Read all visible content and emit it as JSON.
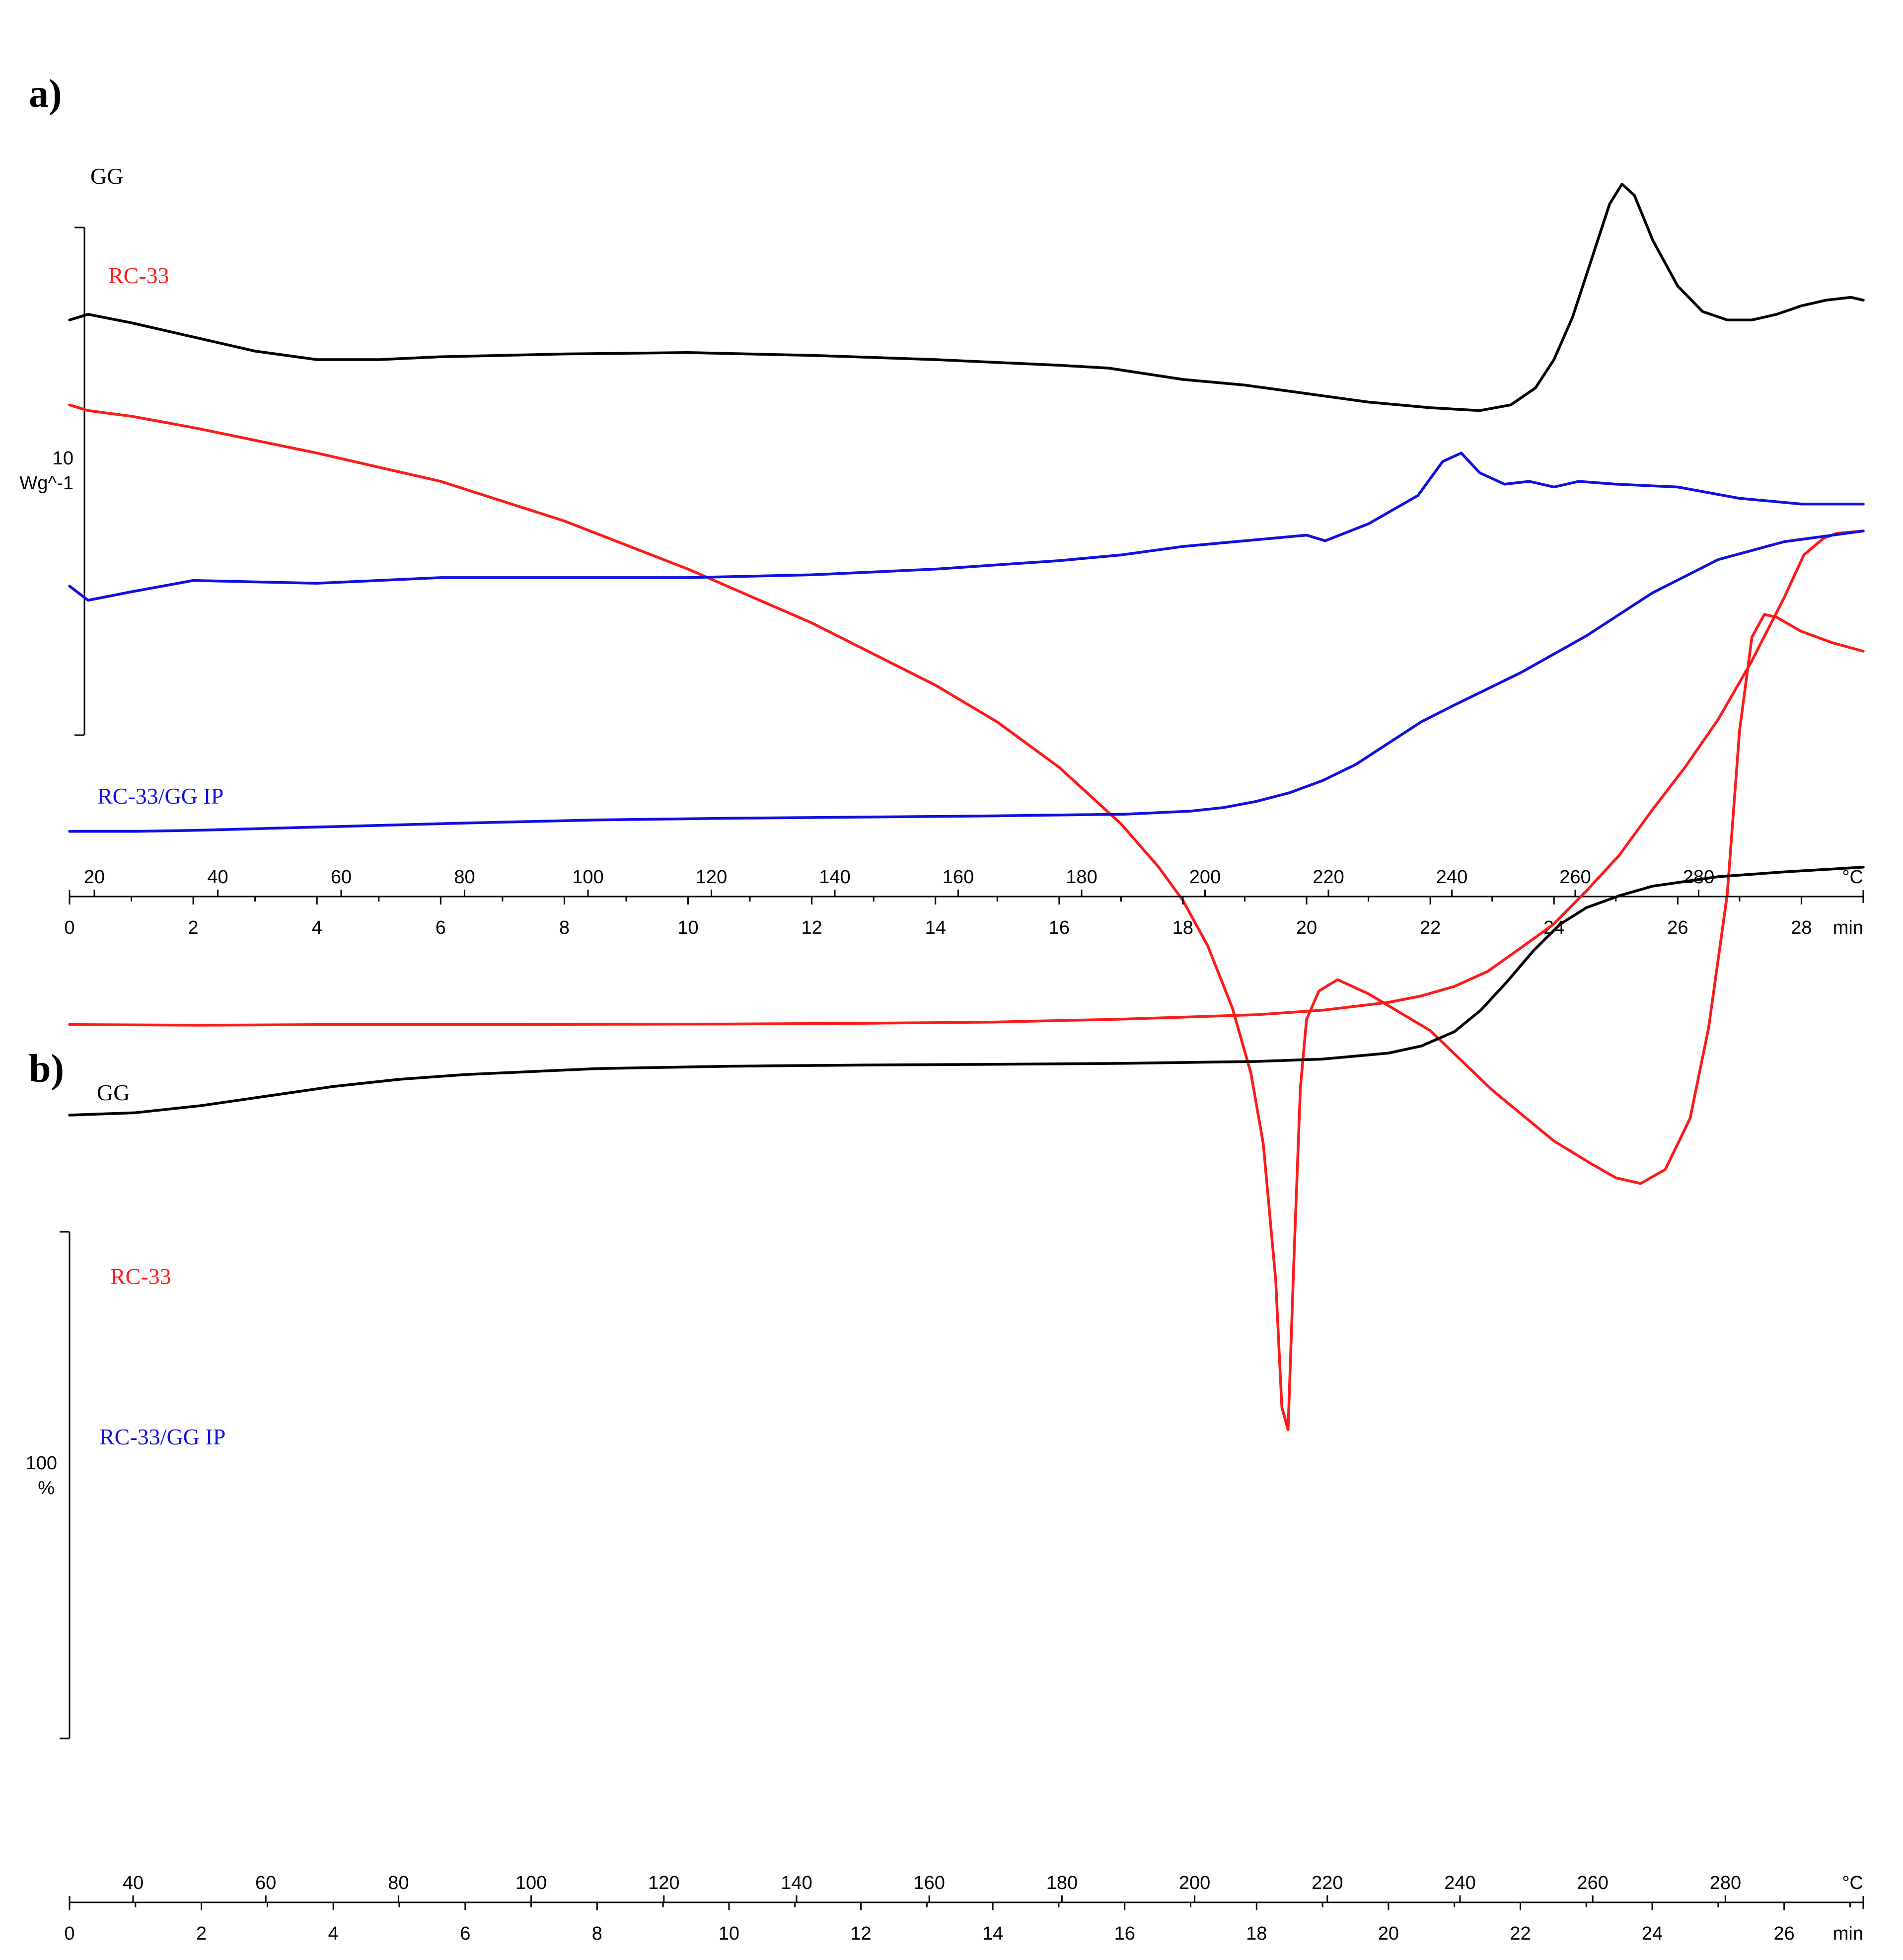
{
  "colors": {
    "black": "#000000",
    "red": "#ff1a1a",
    "blue": "#1010e0"
  },
  "chart_data": [
    {
      "panel": "a)",
      "type": "line",
      "title": "",
      "ylabel_value": "10",
      "ylabel_unit": "Wg^-1",
      "top_axis": {
        "unit": "°C",
        "ticks": [
          20,
          40,
          60,
          80,
          100,
          120,
          140,
          160,
          180,
          200,
          220,
          240,
          260,
          280
        ]
      },
      "bottom_axis": {
        "unit": "min",
        "ticks": [
          0,
          2,
          4,
          6,
          8,
          10,
          12,
          14,
          16,
          18,
          20,
          22,
          24,
          26,
          28
        ],
        "xlim": [
          0,
          29
        ]
      },
      "series": [
        {
          "name": "GG",
          "color": "black",
          "x": [
            0,
            0.3,
            1,
            2,
            3,
            4,
            5,
            6,
            8,
            10,
            12,
            14,
            16,
            16.8,
            18,
            19,
            20,
            21,
            22,
            22.8,
            23.3,
            23.7,
            24,
            24.3,
            24.6,
            24.9,
            25.1,
            25.3,
            25.6,
            26,
            26.4,
            26.8,
            27.2,
            27.6,
            28,
            28.4,
            28.8,
            29
          ],
          "y": [
            0.94,
            0.96,
            0.93,
            0.88,
            0.83,
            0.8,
            0.8,
            0.81,
            0.82,
            0.825,
            0.815,
            0.8,
            0.78,
            0.77,
            0.73,
            0.71,
            0.68,
            0.65,
            0.63,
            0.62,
            0.64,
            0.7,
            0.8,
            0.95,
            1.15,
            1.35,
            1.42,
            1.38,
            1.22,
            1.06,
            0.97,
            0.94,
            0.94,
            0.96,
            0.99,
            1.01,
            1.02,
            1.01
          ]
        },
        {
          "name": "RC-33",
          "color": "red",
          "x": [
            0,
            0.3,
            1,
            2,
            4,
            6,
            8,
            10,
            12,
            14,
            15,
            16,
            17,
            17.6,
            18,
            18.4,
            18.8,
            19.1,
            19.3,
            19.5,
            19.6,
            19.7,
            19.8,
            19.9,
            20,
            20.2,
            20.5,
            21,
            22,
            23,
            24,
            24.6,
            25,
            25.4,
            25.8,
            26.2,
            26.5,
            26.8,
            27,
            27.2,
            27.4,
            27.6,
            28,
            28.5,
            29
          ],
          "y": [
            0.64,
            0.62,
            0.6,
            0.56,
            0.47,
            0.37,
            0.23,
            0.06,
            -0.13,
            -0.35,
            -0.48,
            -0.64,
            -0.84,
            -0.99,
            -1.11,
            -1.27,
            -1.49,
            -1.72,
            -1.97,
            -2.45,
            -2.9,
            -2.98,
            -2.35,
            -1.77,
            -1.53,
            -1.43,
            -1.39,
            -1.44,
            -1.57,
            -1.78,
            -1.96,
            -2.04,
            -2.09,
            -2.11,
            -2.06,
            -1.88,
            -1.56,
            -1.09,
            -0.51,
            -0.18,
            -0.1,
            -0.11,
            -0.16,
            -0.2,
            -0.23
          ]
        },
        {
          "name": "RC-33/GG IP",
          "color": "blue",
          "x": [
            0,
            0.3,
            1,
            2,
            4,
            6,
            8,
            10,
            12,
            14,
            16,
            17,
            18,
            19,
            20,
            20.3,
            21,
            21.8,
            22.2,
            22.5,
            22.8,
            23.2,
            23.6,
            24,
            24.4,
            25,
            26,
            27,
            28,
            29
          ],
          "y": [
            0.0,
            -0.05,
            -0.02,
            0.02,
            0.01,
            0.03,
            0.03,
            0.03,
            0.04,
            0.06,
            0.09,
            0.11,
            0.14,
            0.16,
            0.18,
            0.16,
            0.22,
            0.32,
            0.44,
            0.47,
            0.4,
            0.36,
            0.37,
            0.35,
            0.37,
            0.36,
            0.35,
            0.31,
            0.29,
            0.29
          ]
        }
      ]
    },
    {
      "panel": "b)",
      "type": "line",
      "title": "",
      "ylabel_value": "100",
      "ylabel_unit": "%",
      "top_axis": {
        "unit": "°C",
        "ticks": [
          40,
          60,
          80,
          100,
          120,
          140,
          160,
          180,
          200,
          220,
          240,
          260,
          280
        ]
      },
      "bottom_axis": {
        "unit": "min",
        "ticks": [
          0,
          2,
          4,
          6,
          8,
          10,
          12,
          14,
          16,
          18,
          20,
          22,
          24,
          26
        ],
        "xlim": [
          0,
          27.2
        ]
      },
      "series": [
        {
          "name": "GG",
          "color": "black",
          "x": [
            0,
            1,
            2,
            3,
            4,
            5,
            6,
            8,
            10,
            12,
            14,
            16,
            18,
            19,
            20,
            20.5,
            21,
            21.4,
            21.8,
            22.2,
            22.6,
            23,
            23.5,
            24,
            25,
            26,
            27.2
          ],
          "y": [
            100.0,
            99.9,
            99.6,
            99.2,
            98.8,
            98.5,
            98.3,
            98.05,
            97.95,
            97.9,
            97.87,
            97.83,
            97.75,
            97.65,
            97.4,
            97.1,
            96.5,
            95.6,
            94.4,
            93.1,
            92.0,
            91.3,
            90.8,
            90.4,
            90.0,
            89.8,
            89.6
          ]
        },
        {
          "name": "RC-33",
          "color": "red",
          "x": [
            0,
            2,
            4,
            6,
            8,
            10,
            12,
            14,
            16,
            18,
            19,
            20,
            20.5,
            21,
            21.5,
            22,
            22.5,
            23,
            23.5,
            24,
            24.5,
            25,
            25.5,
            26,
            26.3,
            26.6,
            26.8,
            27.2
          ],
          "y": [
            96.2,
            96.23,
            96.2,
            96.2,
            96.19,
            96.18,
            96.15,
            96.1,
            95.97,
            95.79,
            95.6,
            95.27,
            95.0,
            94.6,
            93.98,
            93.0,
            92.0,
            90.6,
            89.1,
            87.2,
            85.4,
            83.4,
            81.0,
            78.3,
            76.5,
            75.8,
            75.6,
            75.5
          ]
        },
        {
          "name": "RC-33/GG IP",
          "color": "blue",
          "x": [
            0,
            1,
            2,
            4,
            6,
            8,
            10,
            12,
            14,
            16,
            17,
            17.5,
            18,
            18.5,
            19,
            19.5,
            20,
            20.5,
            21,
            22,
            23,
            24,
            25,
            26,
            27.2
          ],
          "y": [
            88.1,
            88.1,
            88.05,
            87.9,
            87.75,
            87.62,
            87.55,
            87.5,
            87.45,
            87.38,
            87.25,
            87.1,
            86.84,
            86.48,
            85.97,
            85.3,
            84.4,
            83.5,
            82.8,
            81.45,
            79.9,
            78.1,
            76.7,
            75.95,
            75.5
          ]
        }
      ]
    }
  ]
}
